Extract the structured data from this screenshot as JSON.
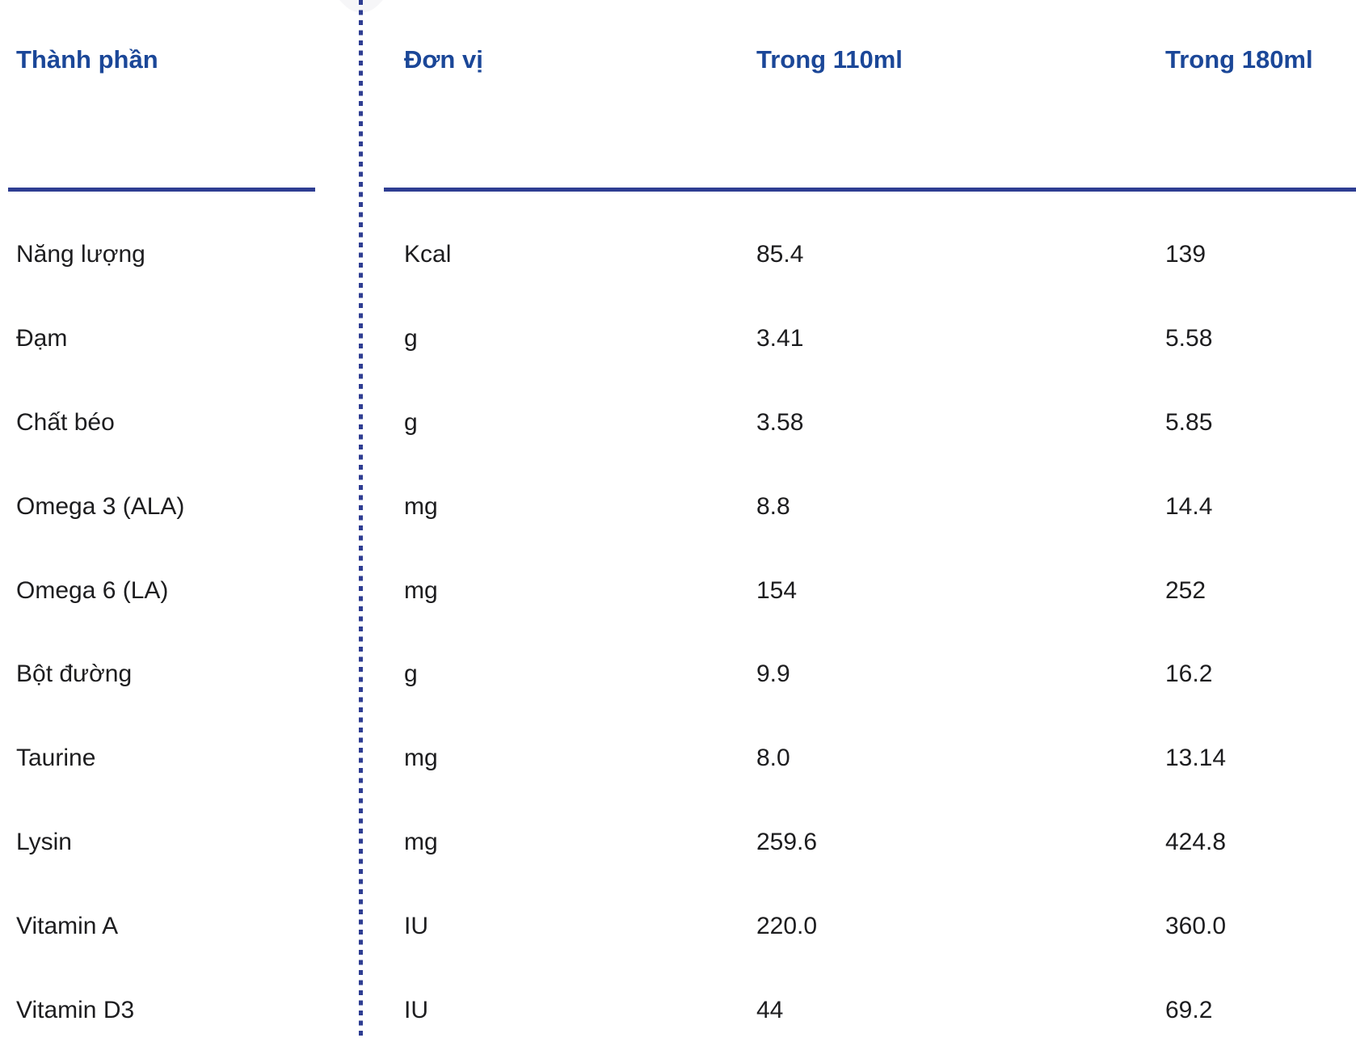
{
  "colors": {
    "header_text": "#1b4798",
    "rule_and_dots": "#2e3d92",
    "body_text": "#1d1d1f",
    "background": "#ffffff"
  },
  "table": {
    "columns": [
      {
        "key": "name",
        "label": "Thành phần"
      },
      {
        "key": "unit",
        "label": "Đơn vị"
      },
      {
        "key": "v110",
        "label": "Trong 110ml"
      },
      {
        "key": "v180",
        "label": "Trong 180ml"
      }
    ],
    "rows": [
      {
        "name": "Năng lượng",
        "unit": "Kcal",
        "v110": "85.4",
        "v180": "139"
      },
      {
        "name": "Đạm",
        "unit": "g",
        "v110": "3.41",
        "v180": "5.58"
      },
      {
        "name": "Chất béo",
        "unit": "g",
        "v110": "3.58",
        "v180": "5.85"
      },
      {
        "name": "Omega 3 (ALA)",
        "unit": "mg",
        "v110": "8.8",
        "v180": "14.4"
      },
      {
        "name": "Omega 6 (LA)",
        "unit": "mg",
        "v110": "154",
        "v180": "252"
      },
      {
        "name": "Bột đường",
        "unit": "g",
        "v110": "9.9",
        "v180": "16.2"
      },
      {
        "name": "Taurine",
        "unit": "mg",
        "v110": "8.0",
        "v180": "13.14"
      },
      {
        "name": "Lysin",
        "unit": "mg",
        "v110": "259.6",
        "v180": "424.8"
      },
      {
        "name": "Vitamin A",
        "unit": "IU",
        "v110": "220.0",
        "v180": "360.0"
      },
      {
        "name": "Vitamin D3",
        "unit": "IU",
        "v110": "44",
        "v180": "69.2"
      }
    ]
  }
}
